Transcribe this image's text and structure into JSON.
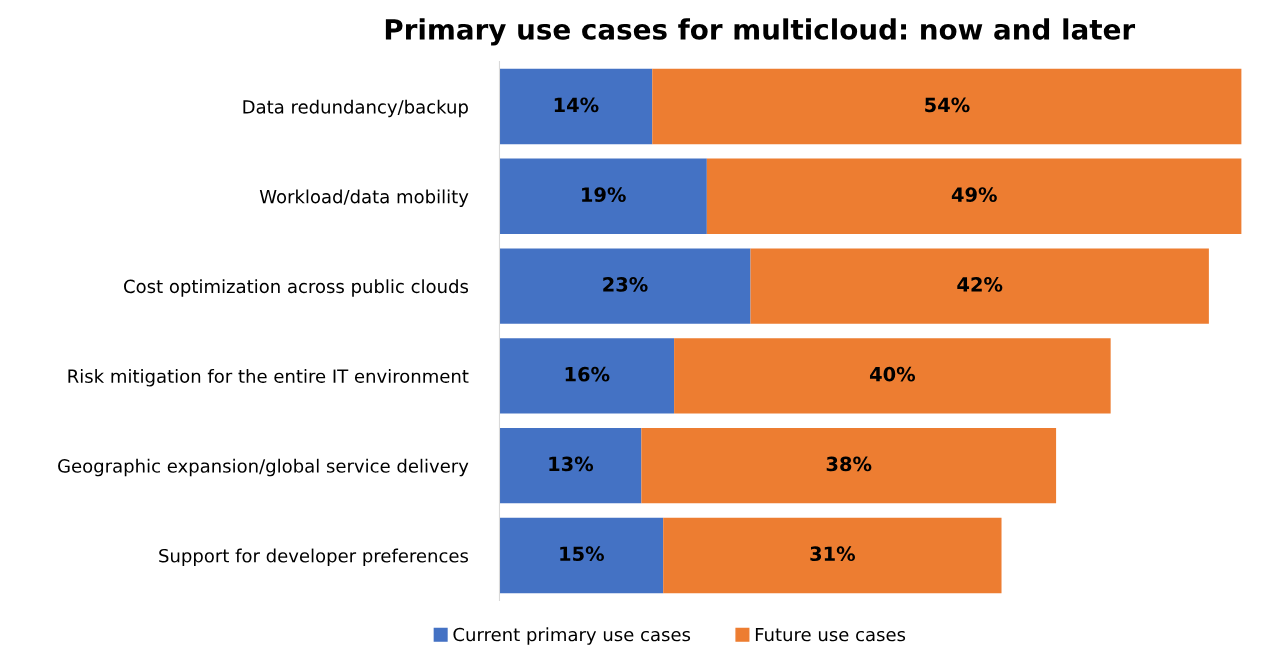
{
  "chart_data": {
    "type": "bar",
    "orientation": "horizontal",
    "stacked": true,
    "title": "Primary use cases for multicloud: now and later",
    "categories": [
      "Data redundancy/backup",
      "Workload/data mobility",
      "Cost optimization across public clouds",
      "Risk mitigation for the entire IT environment",
      "Geographic expansion/global service delivery",
      "Support for developer preferences"
    ],
    "series": [
      {
        "name": "Current primary use cases",
        "color": "#4472c4",
        "values": [
          14,
          19,
          23,
          16,
          13,
          15
        ],
        "value_labels": [
          "14%",
          "19%",
          "23%",
          "16%",
          "13%",
          "15%"
        ]
      },
      {
        "name": "Future use cases",
        "color": "#ed7d31",
        "values": [
          54,
          49,
          42,
          40,
          38,
          31
        ],
        "value_labels": [
          "54%",
          "49%",
          "42%",
          "40%",
          "38%",
          "31%"
        ]
      }
    ],
    "legend": "bottom",
    "grid": false,
    "tick_labels": "y"
  }
}
